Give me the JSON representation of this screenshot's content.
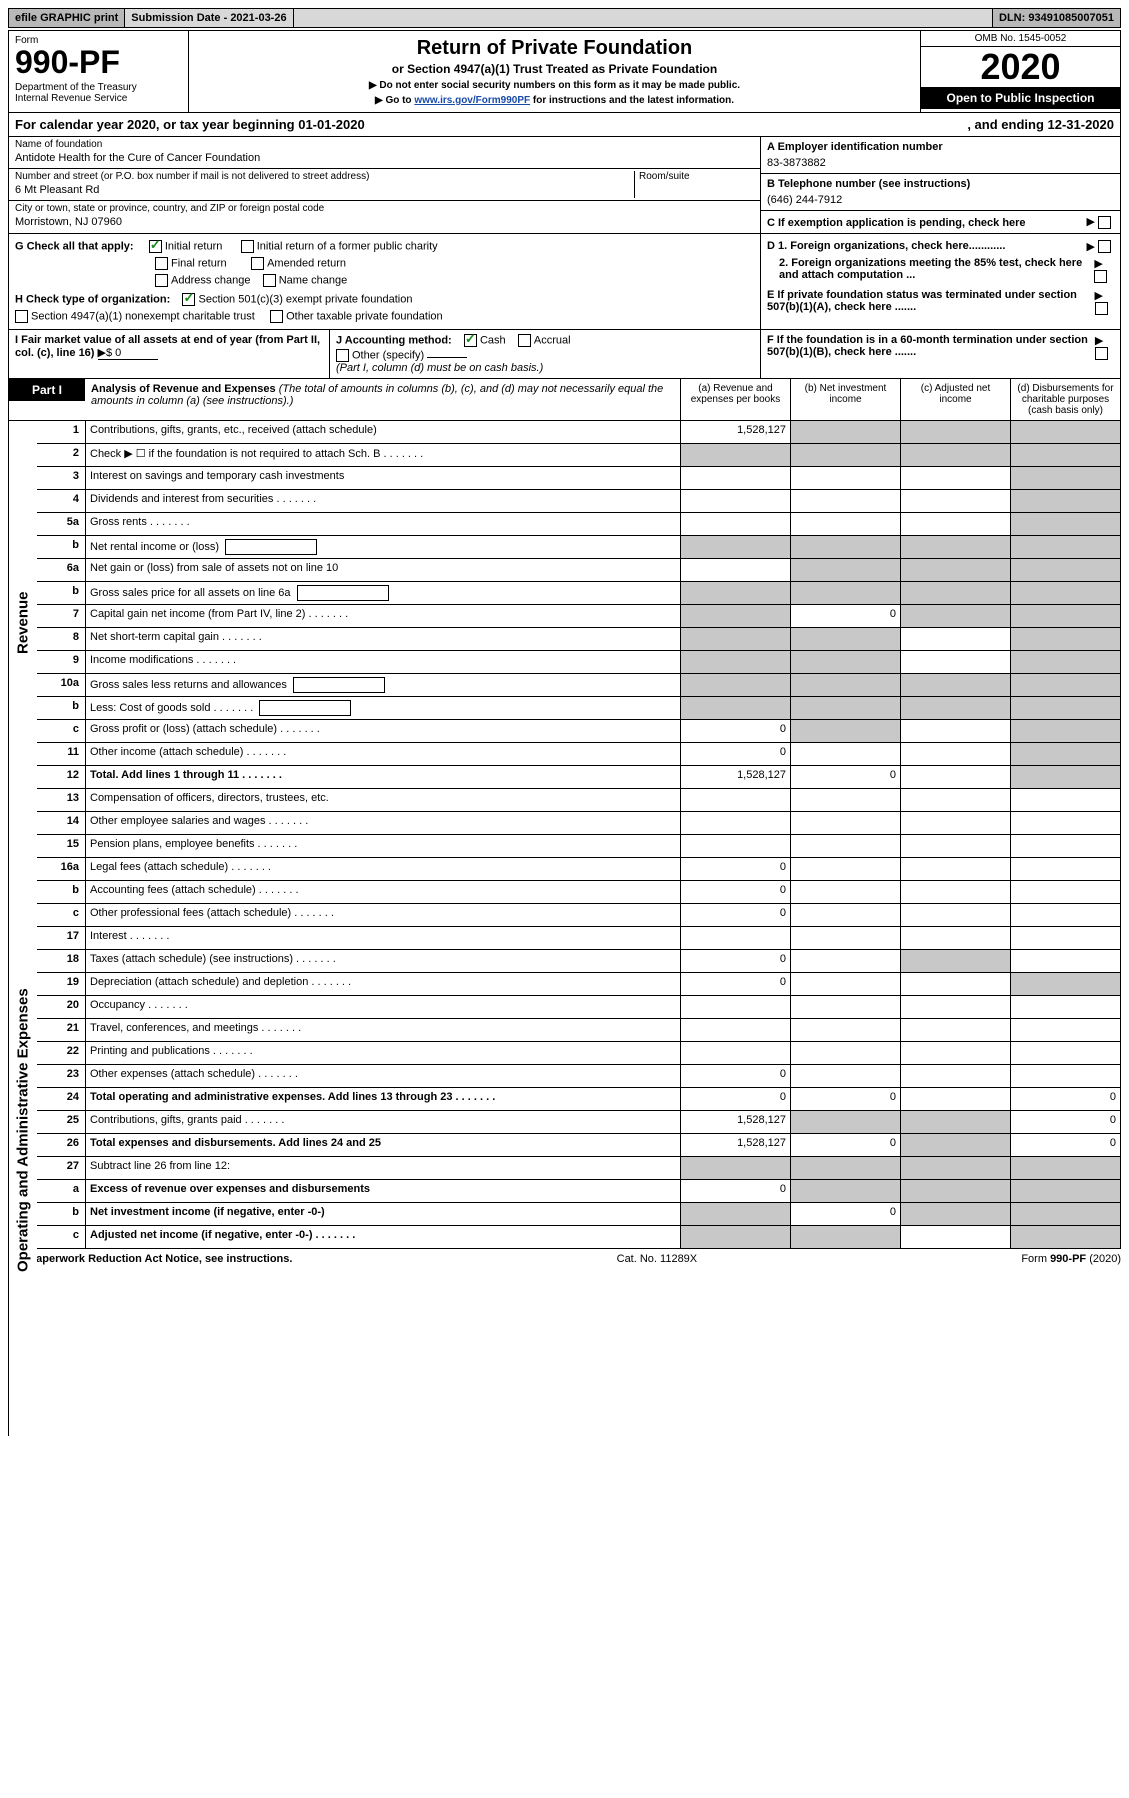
{
  "colors": {
    "shade": "#c8c8c8",
    "black": "#000000",
    "link": "#1a4aa8",
    "check": "#1a8a1a",
    "topbar_dark": "#b8b8b8",
    "topbar_light": "#d8d8d8"
  },
  "topbar": {
    "efile": "efile GRAPHIC print",
    "submission": "Submission Date - 2021-03-26",
    "dln": "DLN: 93491085007051"
  },
  "header": {
    "form_word": "Form",
    "form_number": "990-PF",
    "dept": "Department of the Treasury\nInternal Revenue Service",
    "title": "Return of Private Foundation",
    "subtitle": "or Section 4947(a)(1) Trust Treated as Private Foundation",
    "note1": "▶ Do not enter social security numbers on this form as it may be made public.",
    "note2_pre": "▶ Go to ",
    "note2_link": "www.irs.gov/Form990PF",
    "note2_post": " for instructions and the latest information.",
    "omb": "OMB No. 1545-0052",
    "year": "2020",
    "otp": "Open to Public Inspection"
  },
  "calendar": {
    "text": "For calendar year 2020, or tax year beginning 01-01-2020",
    "ending": ", and ending 12-31-2020"
  },
  "entity": {
    "name_lbl": "Name of foundation",
    "name": "Antidote Health for the Cure of Cancer Foundation",
    "addr_lbl": "Number and street (or P.O. box number if mail is not delivered to street address)",
    "addr": "6 Mt Pleasant Rd",
    "room_lbl": "Room/suite",
    "city_lbl": "City or town, state or province, country, and ZIP or foreign postal code",
    "city": "Morristown, NJ  07960"
  },
  "rightinfo": {
    "a_lbl": "A Employer identification number",
    "a_val": "83-3873882",
    "b_lbl": "B Telephone number (see instructions)",
    "b_val": "(646) 244-7912",
    "c_lbl": "C If exemption application is pending, check here",
    "d1_lbl": "D 1. Foreign organizations, check here............",
    "d2_lbl": "2. Foreign organizations meeting the 85% test, check here and attach computation ...",
    "e_lbl": "E If private foundation status was terminated under section 507(b)(1)(A), check here .......",
    "f_lbl": "F If the foundation is in a 60-month termination under section 507(b)(1)(B), check here ......."
  },
  "checks": {
    "g_lbl": "G Check all that apply:",
    "initial": "Initial return",
    "initial_former": "Initial return of a former public charity",
    "final": "Final return",
    "amended": "Amended return",
    "addr_change": "Address change",
    "name_change": "Name change",
    "h_lbl": "H Check type of organization:",
    "h_501c3": "Section 501(c)(3) exempt private foundation",
    "h_4947": "Section 4947(a)(1) nonexempt charitable trust",
    "h_other_tax": "Other taxable private foundation"
  },
  "ij": {
    "i_lbl": "I Fair market value of all assets at end of year (from Part II, col. (c), line 16)",
    "i_val": "▶$  0",
    "j_lbl": "J Accounting method:",
    "j_cash": "Cash",
    "j_accrual": "Accrual",
    "j_other": "Other (specify)",
    "j_note": "(Part I, column (d) must be on cash basis.)"
  },
  "part1": {
    "label": "Part I",
    "heading": "Analysis of Revenue and Expenses",
    "heading_note": " (The total of amounts in columns (b), (c), and (d) may not necessarily equal the amounts in column (a) (see instructions).)",
    "col_a": "(a) Revenue and expenses per books",
    "col_b": "(b) Net investment income",
    "col_c": "(c) Adjusted net income",
    "col_d": "(d) Disbursements for charitable purposes (cash basis only)"
  },
  "side": {
    "revenue": "Revenue",
    "expenses": "Operating and Administrative Expenses"
  },
  "rows": [
    {
      "n": "1",
      "t": "Contributions, gifts, grants, etc., received (attach schedule)",
      "a": "1,528,127",
      "shade_b": true,
      "shade_c": true,
      "shade_d": true
    },
    {
      "n": "2",
      "t": "Check ▶ ☐ if the foundation is not required to attach Sch. B",
      "shade_a": true,
      "shade_b": true,
      "shade_c": true,
      "shade_d": true,
      "dots": true
    },
    {
      "n": "3",
      "t": "Interest on savings and temporary cash investments",
      "shade_d": true
    },
    {
      "n": "4",
      "t": "Dividends and interest from securities",
      "shade_d": true,
      "dots": true
    },
    {
      "n": "5a",
      "t": "Gross rents",
      "shade_d": true,
      "dots": true
    },
    {
      "n": "b",
      "t": "Net rental income or (loss)",
      "shade_a": true,
      "shade_b": true,
      "shade_c": true,
      "shade_d": true,
      "box": true
    },
    {
      "n": "6a",
      "t": "Net gain or (loss) from sale of assets not on line 10",
      "shade_b": true,
      "shade_c": true,
      "shade_d": true
    },
    {
      "n": "b",
      "t": "Gross sales price for all assets on line 6a",
      "shade_a": true,
      "shade_b": true,
      "shade_c": true,
      "shade_d": true,
      "box": true
    },
    {
      "n": "7",
      "t": "Capital gain net income (from Part IV, line 2)",
      "shade_a": true,
      "b": "0",
      "shade_c": true,
      "shade_d": true,
      "dots": true
    },
    {
      "n": "8",
      "t": "Net short-term capital gain",
      "shade_a": true,
      "shade_b": true,
      "shade_d": true,
      "dots": true
    },
    {
      "n": "9",
      "t": "Income modifications",
      "shade_a": true,
      "shade_b": true,
      "shade_d": true,
      "dots": true
    },
    {
      "n": "10a",
      "t": "Gross sales less returns and allowances",
      "shade_a": true,
      "shade_b": true,
      "shade_c": true,
      "shade_d": true,
      "box": true
    },
    {
      "n": "b",
      "t": "Less: Cost of goods sold",
      "shade_a": true,
      "shade_b": true,
      "shade_c": true,
      "shade_d": true,
      "box": true,
      "dots": true
    },
    {
      "n": "c",
      "t": "Gross profit or (loss) (attach schedule)",
      "a": "0",
      "shade_b": true,
      "shade_d": true,
      "dots": true
    },
    {
      "n": "11",
      "t": "Other income (attach schedule)",
      "a": "0",
      "shade_d": true,
      "dots": true
    },
    {
      "n": "12",
      "t": "Total. Add lines 1 through 11",
      "bold": true,
      "a": "1,528,127",
      "b": "0",
      "shade_d": true,
      "dots": true
    },
    {
      "n": "13",
      "t": "Compensation of officers, directors, trustees, etc.",
      "sec": "exp"
    },
    {
      "n": "14",
      "t": "Other employee salaries and wages",
      "dots": true
    },
    {
      "n": "15",
      "t": "Pension plans, employee benefits",
      "dots": true
    },
    {
      "n": "16a",
      "t": "Legal fees (attach schedule)",
      "a": "0",
      "dots": true
    },
    {
      "n": "b",
      "t": "Accounting fees (attach schedule)",
      "a": "0",
      "dots": true
    },
    {
      "n": "c",
      "t": "Other professional fees (attach schedule)",
      "a": "0",
      "dots": true
    },
    {
      "n": "17",
      "t": "Interest",
      "dots": true
    },
    {
      "n": "18",
      "t": "Taxes (attach schedule) (see instructions)",
      "a": "0",
      "shade_c": true,
      "dots": true
    },
    {
      "n": "19",
      "t": "Depreciation (attach schedule) and depletion",
      "a": "0",
      "shade_d": true,
      "dots": true
    },
    {
      "n": "20",
      "t": "Occupancy",
      "dots": true
    },
    {
      "n": "21",
      "t": "Travel, conferences, and meetings",
      "dots": true
    },
    {
      "n": "22",
      "t": "Printing and publications",
      "dots": true
    },
    {
      "n": "23",
      "t": "Other expenses (attach schedule)",
      "a": "0",
      "dots": true
    },
    {
      "n": "24",
      "t": "Total operating and administrative expenses. Add lines 13 through 23",
      "bold": true,
      "a": "0",
      "b": "0",
      "d": "0",
      "dots": true
    },
    {
      "n": "25",
      "t": "Contributions, gifts, grants paid",
      "a": "1,528,127",
      "shade_b": true,
      "shade_c": true,
      "d": "0",
      "dots": true
    },
    {
      "n": "26",
      "t": "Total expenses and disbursements. Add lines 24 and 25",
      "bold": true,
      "a": "1,528,127",
      "b": "0",
      "shade_c": true,
      "d": "0"
    },
    {
      "n": "27",
      "t": "Subtract line 26 from line 12:",
      "shade_a": true,
      "shade_b": true,
      "shade_c": true,
      "shade_d": true,
      "sec": "none"
    },
    {
      "n": "a",
      "t": "Excess of revenue over expenses and disbursements",
      "bold": true,
      "a": "0",
      "shade_b": true,
      "shade_c": true,
      "shade_d": true
    },
    {
      "n": "b",
      "t": "Net investment income (if negative, enter -0-)",
      "bold": true,
      "shade_a": true,
      "b": "0",
      "shade_c": true,
      "shade_d": true
    },
    {
      "n": "c",
      "t": "Adjusted net income (if negative, enter -0-)",
      "bold": true,
      "shade_a": true,
      "shade_b": true,
      "shade_d": true,
      "dots": true
    }
  ],
  "footer": {
    "left": "For Paperwork Reduction Act Notice, see instructions.",
    "mid": "Cat. No. 11289X",
    "right": "Form 990-PF (2020)"
  }
}
